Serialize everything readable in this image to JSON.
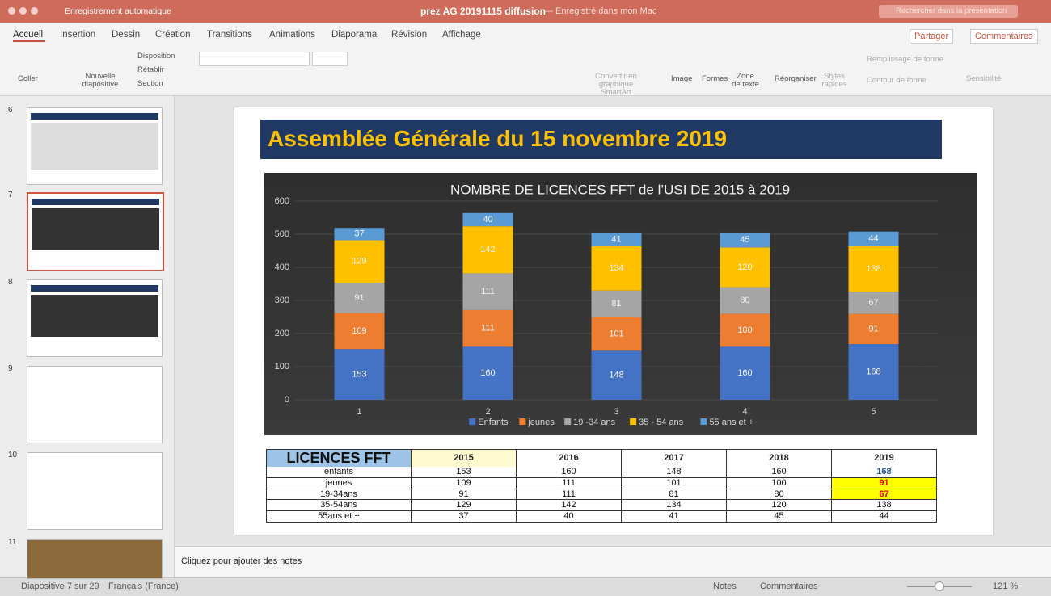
{
  "window": {
    "file": "prez AG 20191115 diffusion",
    "saved": "— Enregistré dans mon Mac",
    "autosave": "Enregistrement automatique",
    "search": "Rechercher dans la présentation"
  },
  "tabs": [
    "Accueil",
    "Insertion",
    "Dessin",
    "Création",
    "Transitions",
    "Animations",
    "Diaporama",
    "Révision",
    "Affichage"
  ],
  "share": "Partager",
  "comments_button": "Commentaires",
  "ribbon": {
    "paste": "Coller",
    "new_slide": "Nouvelle diapositive",
    "layout": "Disposition",
    "reset": "Rétablir",
    "section": "Section",
    "smartart": "Convertir en graphique SmartArt",
    "image": "Image",
    "shapes": "Formes",
    "textbox": "Zone de texte",
    "arrange": "Réorganiser",
    "quick_styles": "Styles rapides",
    "fill": "Remplissage de forme",
    "outline": "Contour de forme",
    "sensitivity": "Sensibilité"
  },
  "thumbnails": [
    "6",
    "7",
    "8",
    "9",
    "10",
    "11"
  ],
  "slide_title": "Assemblée Générale du 15 novembre 2019",
  "chart_data": {
    "type": "stacked-bar",
    "title": "NOMBRE DE LICENCES FFT de l’USI DE 2015 à 2019",
    "categories": [
      "1",
      "2",
      "3",
      "4",
      "5"
    ],
    "series": [
      {
        "name": "Enfants",
        "color": "#4472c4",
        "values": [
          153,
          160,
          148,
          160,
          168
        ]
      },
      {
        "name": "jeunes",
        "color": "#ed7d31",
        "values": [
          109,
          111,
          101,
          100,
          91
        ]
      },
      {
        "name": "19 -34 ans",
        "color": "#a5a5a5",
        "values": [
          91,
          111,
          81,
          80,
          67
        ]
      },
      {
        "name": "35 - 54 ans",
        "color": "#ffc000",
        "values": [
          129,
          142,
          134,
          120,
          138
        ]
      },
      {
        "name": "55 ans et +",
        "color": "#5b9bd5",
        "values": [
          37,
          40,
          41,
          45,
          44
        ]
      }
    ],
    "ylim": [
      0,
      600
    ],
    "yticks": [
      0,
      100,
      200,
      300,
      400,
      500,
      600
    ],
    "grid": true
  },
  "table": {
    "header": [
      "LICENCES FFT",
      "2015",
      "2016",
      "2017",
      "2018",
      "2019"
    ],
    "rows": [
      [
        "enfants",
        "153",
        "160",
        "148",
        "160",
        "168"
      ],
      [
        "jeunes",
        "109",
        "111",
        "101",
        "100",
        "91"
      ],
      [
        "19-34ans",
        "91",
        "111",
        "81",
        "80",
        "67"
      ],
      [
        "35-54ans",
        "129",
        "142",
        "134",
        "120",
        "138"
      ],
      [
        "55ans et +",
        "37",
        "40",
        "41",
        "45",
        "44"
      ]
    ]
  },
  "notes": "Cliquez pour ajouter des notes",
  "status": {
    "slide": "Diapositive 7 sur 29",
    "language": "Français (France)",
    "notes": "Notes",
    "comments": "Commentaires",
    "zoom": "121 %"
  }
}
